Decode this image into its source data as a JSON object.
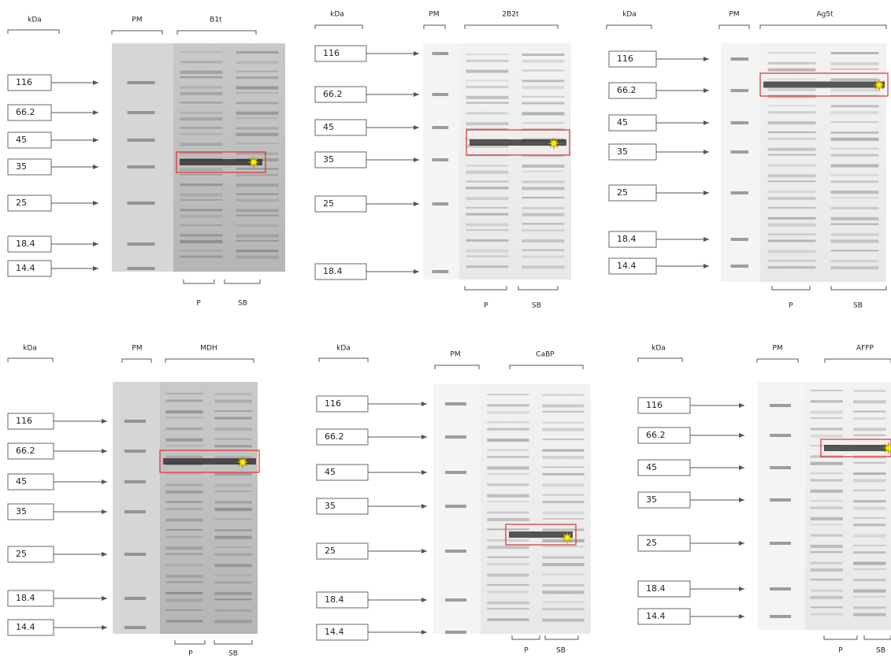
{
  "panels": [
    {
      "kda": "kDa",
      "pm": "PM",
      "name": "B1t",
      "markers": [
        "116",
        "66.2",
        "45",
        "35",
        "25",
        "18.4",
        "14.4"
      ],
      "p": "P",
      "sb": "SB"
    },
    {
      "kda": "kDa",
      "pm": "PM",
      "name": "2B2t",
      "markers": [
        "116",
        "66.2",
        "45",
        "35",
        "25",
        "18.4"
      ],
      "p": "P",
      "sb": "SB"
    },
    {
      "kda": "kDa",
      "pm": "PM",
      "name": "Ag5t",
      "markers": [
        "116",
        "66.2",
        "45",
        "35",
        "25",
        "18.4",
        "14.4"
      ],
      "p": "P",
      "sb": "SB"
    },
    {
      "kda": "kDa",
      "pm": "PM",
      "name": "MDH",
      "markers": [
        "116",
        "66.2",
        "45",
        "35",
        "25",
        "18.4",
        "14.4"
      ],
      "p": "P",
      "sb": "SB"
    },
    {
      "kda": "kDa",
      "pm": "PM",
      "name": "CaBP",
      "markers": [
        "116",
        "66.2",
        "45",
        "35",
        "25",
        "18.4",
        "14.4"
      ],
      "p": "P",
      "sb": "SB"
    },
    {
      "kda": "kDa",
      "pm": "PM",
      "name": "AFFP",
      "markers": [
        "116",
        "66.2",
        "45",
        "35",
        "25",
        "18.4",
        "14.4"
      ],
      "p": "P",
      "sb": "SB"
    }
  ]
}
